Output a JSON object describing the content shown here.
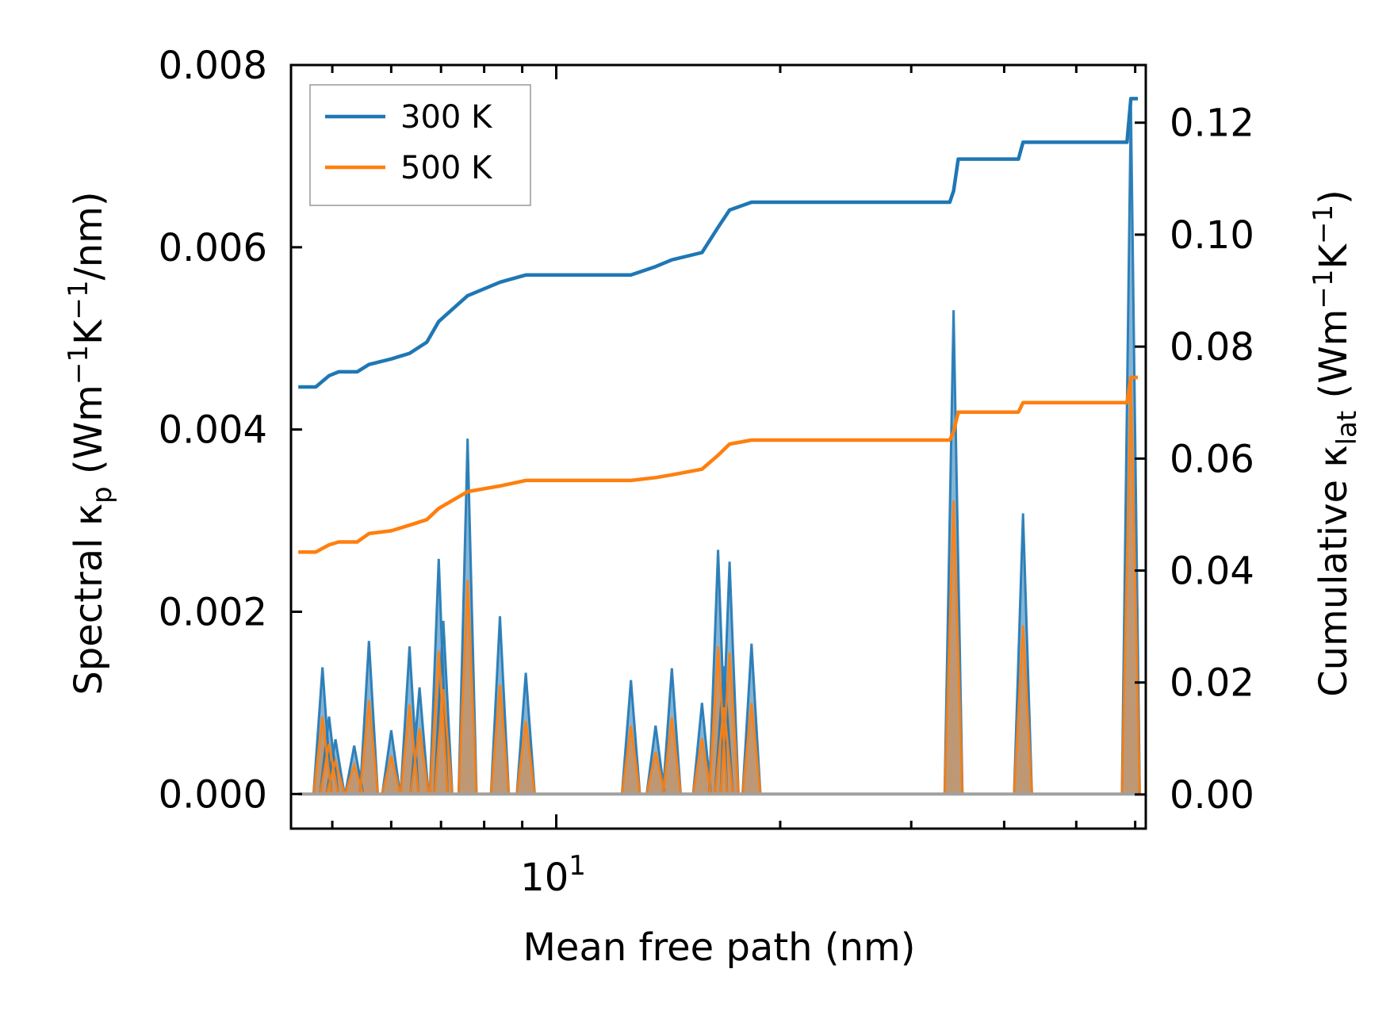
{
  "chart_data": {
    "type": "line",
    "xlabel": "Mean free path (nm)",
    "xscale": "log",
    "xlim": [
      4.4,
      62
    ],
    "x_tick_labels": [
      {
        "value": 10,
        "base": "10",
        "exp": "1"
      }
    ],
    "left_axis": {
      "label_main": "Spectral κ",
      "label_sub": "p",
      "label_unit_pre": " (Wm",
      "label_unit_sup1": "−1",
      "label_unit_mid": "K",
      "label_unit_sup2": "−1",
      "label_unit_post": "/nm)",
      "ylim": [
        -0.00038,
        0.008
      ],
      "ticks": [
        0.0,
        0.002,
        0.004,
        0.006,
        0.008
      ],
      "tick_labels": [
        "0.000",
        "0.002",
        "0.004",
        "0.006",
        "0.008"
      ]
    },
    "right_axis": {
      "label_main": "Cumulative κ",
      "label_sub": "lat",
      "label_unit_pre": " (Wm",
      "label_unit_sup1": "−1",
      "label_unit_mid": "K",
      "label_unit_sup2": "−1",
      "label_unit_post": ")",
      "ylim": [
        -0.0061,
        0.1303
      ],
      "ticks": [
        0.0,
        0.02,
        0.04,
        0.06,
        0.08,
        0.1,
        0.12
      ],
      "tick_labels": [
        "0.00",
        "0.02",
        "0.04",
        "0.06",
        "0.08",
        "0.10",
        "0.12"
      ]
    },
    "legend": {
      "position": "top-left",
      "entries": [
        "300 K",
        "500 K"
      ]
    },
    "colors": {
      "300 K": "#1f77b4",
      "500 K": "#ff7f0e",
      "fill": "#a0a0a0"
    },
    "spectral_peaks": [
      {
        "x": 4.85,
        "k300": 0.00139,
        "k500": 0.00085
      },
      {
        "x": 4.95,
        "k300": 0.00085,
        "k500": 0.00055
      },
      {
        "x": 5.05,
        "k300": 0.0006,
        "k500": 0.00036
      },
      {
        "x": 5.35,
        "k300": 0.00053,
        "k500": 0.00032
      },
      {
        "x": 5.6,
        "k300": 0.00168,
        "k500": 0.00103
      },
      {
        "x": 6.0,
        "k300": 0.0007,
        "k500": 0.00042
      },
      {
        "x": 6.35,
        "k300": 0.00162,
        "k500": 0.00098
      },
      {
        "x": 6.55,
        "k300": 0.00117,
        "k500": 0.00072
      },
      {
        "x": 6.95,
        "k300": 0.00258,
        "k500": 0.00157
      },
      {
        "x": 7.05,
        "k300": 0.0019,
        "k500": 0.00115
      },
      {
        "x": 7.6,
        "k300": 0.0039,
        "k500": 0.00235
      },
      {
        "x": 8.4,
        "k300": 0.00195,
        "k500": 0.0012
      },
      {
        "x": 9.1,
        "k300": 0.00133,
        "k500": 0.0008
      },
      {
        "x": 12.6,
        "k300": 0.00125,
        "k500": 0.00075
      },
      {
        "x": 13.6,
        "k300": 0.00075,
        "k500": 0.00046
      },
      {
        "x": 14.3,
        "k300": 0.00138,
        "k500": 0.00084
      },
      {
        "x": 15.7,
        "k300": 0.001,
        "k500": 0.00061
      },
      {
        "x": 16.5,
        "k300": 0.00268,
        "k500": 0.00162
      },
      {
        "x": 16.8,
        "k300": 0.0014,
        "k500": 0.00095
      },
      {
        "x": 17.1,
        "k300": 0.00255,
        "k500": 0.00155
      },
      {
        "x": 18.3,
        "k300": 0.00165,
        "k500": 0.001
      },
      {
        "x": 34.2,
        "k300": 0.00531,
        "k500": 0.00322
      },
      {
        "x": 42.4,
        "k300": 0.00308,
        "k500": 0.00185
      },
      {
        "x": 59.2,
        "k300": 0.0076,
        "k500": 0.00455
      }
    ],
    "cumulative": {
      "300 K": [
        [
          4.5,
          0.0728
        ],
        [
          4.75,
          0.0728
        ],
        [
          4.95,
          0.0748
        ],
        [
          5.1,
          0.0755
        ],
        [
          5.4,
          0.0755
        ],
        [
          5.6,
          0.0768
        ],
        [
          6.0,
          0.0778
        ],
        [
          6.35,
          0.0788
        ],
        [
          6.7,
          0.0808
        ],
        [
          6.95,
          0.0845
        ],
        [
          7.6,
          0.0891
        ],
        [
          8.4,
          0.0915
        ],
        [
          9.1,
          0.0928
        ],
        [
          12.6,
          0.0928
        ],
        [
          13.6,
          0.0943
        ],
        [
          14.3,
          0.0955
        ],
        [
          15.7,
          0.0968
        ],
        [
          16.5,
          0.1013
        ],
        [
          17.1,
          0.1044
        ],
        [
          18.3,
          0.1058
        ],
        [
          33.8,
          0.1058
        ],
        [
          34.2,
          0.1078
        ],
        [
          34.7,
          0.1135
        ],
        [
          41.8,
          0.1135
        ],
        [
          42.4,
          0.1165
        ],
        [
          58.5,
          0.1165
        ],
        [
          59.2,
          0.1243
        ],
        [
          60.5,
          0.1243
        ]
      ],
      "500 K": [
        [
          4.5,
          0.0433
        ],
        [
          4.75,
          0.0433
        ],
        [
          4.95,
          0.0446
        ],
        [
          5.1,
          0.0451
        ],
        [
          5.4,
          0.0451
        ],
        [
          5.6,
          0.0466
        ],
        [
          6.0,
          0.0471
        ],
        [
          6.35,
          0.0481
        ],
        [
          6.7,
          0.0491
        ],
        [
          6.95,
          0.0511
        ],
        [
          7.6,
          0.0541
        ],
        [
          8.4,
          0.0551
        ],
        [
          9.1,
          0.0561
        ],
        [
          12.6,
          0.0561
        ],
        [
          13.6,
          0.0566
        ],
        [
          14.3,
          0.0571
        ],
        [
          15.7,
          0.0581
        ],
        [
          16.5,
          0.0606
        ],
        [
          17.1,
          0.0626
        ],
        [
          18.3,
          0.0633
        ],
        [
          33.8,
          0.0633
        ],
        [
          34.2,
          0.0648
        ],
        [
          34.7,
          0.0683
        ],
        [
          41.8,
          0.0683
        ],
        [
          42.4,
          0.07
        ],
        [
          58.5,
          0.07
        ],
        [
          59.2,
          0.0745
        ],
        [
          60.5,
          0.0745
        ]
      ]
    },
    "x_range_data": [
      4.5,
      60.5
    ]
  }
}
